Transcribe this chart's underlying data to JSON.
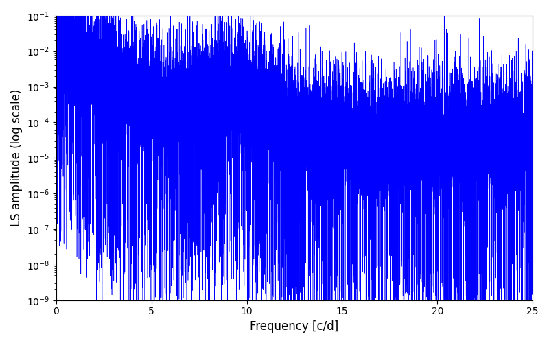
{
  "xlabel": "Frequency [c/d]",
  "ylabel": "LS amplitude (log scale)",
  "xlim": [
    0,
    25
  ],
  "ylim": [
    1e-09,
    0.1
  ],
  "line_color": "#0000ff",
  "line_width": 0.4,
  "figsize": [
    8.0,
    5.0
  ],
  "dpi": 100,
  "freq_max": 25.0,
  "n_points": 15000,
  "seed": 12345
}
